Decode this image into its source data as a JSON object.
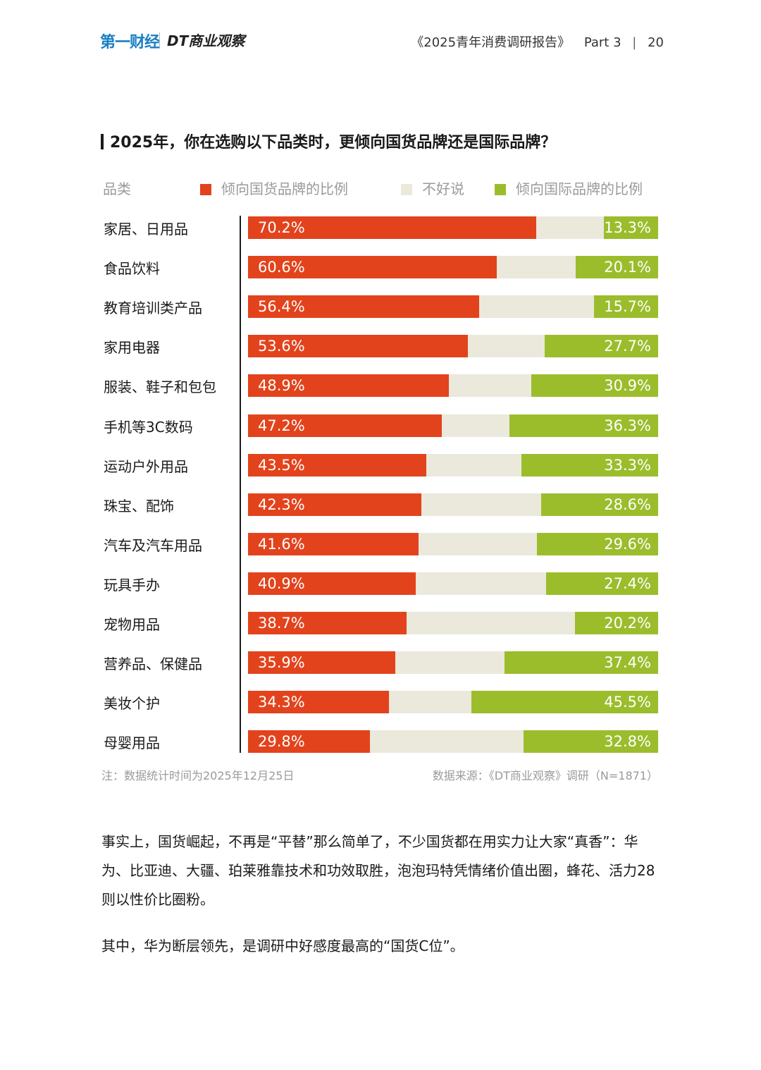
{
  "header": {
    "logo_primary": "第一财经",
    "logo_secondary": "DT商业观察",
    "report_title": "《2025青年消费调研报告》",
    "part": "Part 3",
    "page": "20"
  },
  "colors": {
    "domestic": "#e2431c",
    "neutral": "#ebe8dc",
    "international": "#9bbd2c"
  },
  "chart_data": {
    "type": "bar",
    "orientation": "horizontal-stacked-percent",
    "title": "2025年，你在选购以下品类时，更倾向国货品牌还是国际品牌？",
    "category_header": "品类",
    "legend": [
      "倾向国货品牌的比例",
      "不好说",
      "倾向国际品牌的比例"
    ],
    "categories": [
      "家居、日用品",
      "食品饮料",
      "教育培训类产品",
      "家用电器",
      "服装、鞋子和包包",
      "手机等3C数码",
      "运动户外用品",
      "珠宝、配饰",
      "汽车及汽车用品",
      "玩具手办",
      "宠物用品",
      "营养品、保健品",
      "美妆个护",
      "母婴用品"
    ],
    "series": [
      {
        "name": "倾向国货品牌的比例",
        "values": [
          70.2,
          60.6,
          56.4,
          53.6,
          48.9,
          47.2,
          43.5,
          42.3,
          41.6,
          40.9,
          38.7,
          35.9,
          34.3,
          29.8
        ]
      },
      {
        "name": "倾向国际品牌的比例",
        "values": [
          13.3,
          20.1,
          15.7,
          27.7,
          30.9,
          36.3,
          33.3,
          28.6,
          29.6,
          27.4,
          20.2,
          37.4,
          45.5,
          32.8
        ]
      }
    ],
    "value_labels_domestic": [
      "70.2%",
      "60.6%",
      "56.4%",
      "53.6%",
      "48.9%",
      "47.2%",
      "43.5%",
      "42.3%",
      "41.6%",
      "40.9%",
      "38.7%",
      "35.9%",
      "34.3%",
      "29.8%"
    ],
    "value_labels_international": [
      "13.3%",
      "20.1%",
      "15.7%",
      "27.7%",
      "30.9%",
      "36.3%",
      "33.3%",
      "28.6%",
      "29.6%",
      "27.4%",
      "20.2%",
      "37.4%",
      "45.5%",
      "32.8%"
    ],
    "xlim": [
      0,
      100
    ],
    "note": "注：数据统计时间为2025年12月25日",
    "source": "数据来源：《DT商业观察》调研（N=1871）"
  },
  "body": {
    "paragraph1": "事实上，国货崛起，不再是“平替”那么简单了，不少国货都在用实力让大家“真香”：华为、比亚迪、大疆、珀莱雅靠技术和功效取胜，泡泡玛特凭情绪价值出圈，蜂花、活力28则以性价比圈粉。",
    "paragraph2": "其中，华为断层领先，是调研中好感度最高的“国货C位”。"
  }
}
